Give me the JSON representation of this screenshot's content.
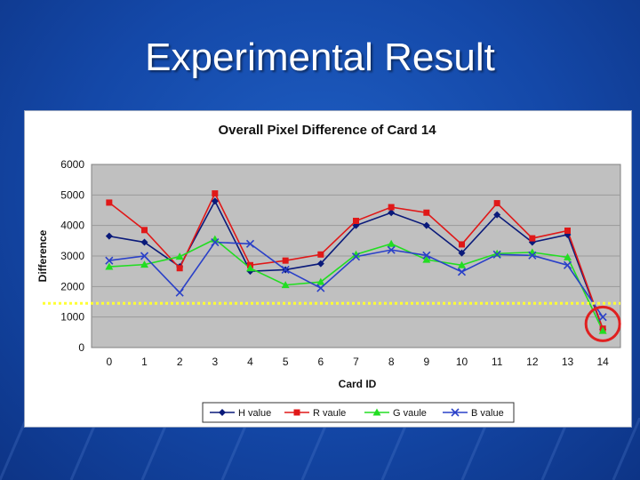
{
  "slide": {
    "title": "Experimental Result"
  },
  "colors": {
    "background": "#1448a8",
    "plot_area": "#c0c0c0",
    "threshold_line": "#ffff33",
    "highlight_circle": "#e02020"
  },
  "chart_data": {
    "type": "line",
    "title": "Overall Pixel Difference of Card 14",
    "xlabel": "Card ID",
    "ylabel": "Difference",
    "categories": [
      "0",
      "1",
      "2",
      "3",
      "4",
      "5",
      "6",
      "7",
      "8",
      "9",
      "10",
      "11",
      "12",
      "13",
      "14"
    ],
    "ylim": [
      0,
      6000
    ],
    "yticks": [
      "0",
      "1000",
      "2000",
      "3000",
      "4000",
      "5000",
      "6000"
    ],
    "grid": true,
    "threshold": 1450,
    "highlight_category": "14",
    "series": [
      {
        "name": "H value",
        "color": "#0a1a7a",
        "marker": "diamond",
        "values": [
          3650,
          3450,
          2650,
          4800,
          2500,
          2550,
          2750,
          4000,
          4420,
          4000,
          3100,
          4350,
          3450,
          3700,
          600
        ]
      },
      {
        "name": "R vaule",
        "color": "#e01818",
        "marker": "square",
        "values": [
          4750,
          3850,
          2600,
          5050,
          2700,
          2850,
          3050,
          4150,
          4600,
          4420,
          3380,
          4730,
          3580,
          3830,
          620
        ]
      },
      {
        "name": "G vaule",
        "color": "#22dd22",
        "marker": "triangle",
        "values": [
          2650,
          2720,
          2980,
          3550,
          2600,
          2050,
          2150,
          3050,
          3400,
          2880,
          2700,
          3080,
          3120,
          2960,
          550
        ]
      },
      {
        "name": "B value",
        "color": "#2a40c8",
        "marker": "x",
        "values": [
          2850,
          3000,
          1800,
          3450,
          3400,
          2550,
          1950,
          2980,
          3200,
          3020,
          2480,
          3050,
          3020,
          2700,
          1000
        ]
      }
    ],
    "legend_position": "bottom"
  }
}
